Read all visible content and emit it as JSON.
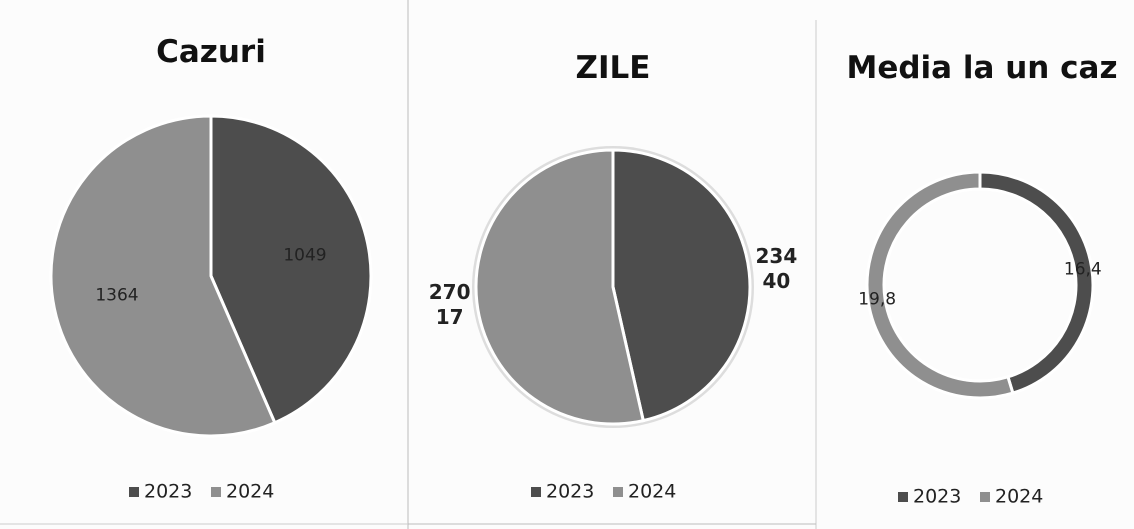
{
  "chart_data": [
    {
      "type": "pie",
      "title": "Cazuri",
      "categories": [
        "2023",
        "2024"
      ],
      "values": [
        1049,
        1364
      ],
      "colors": [
        "#4d4d4d",
        "#8f8f8f"
      ]
    },
    {
      "type": "pie",
      "title": "ZILE",
      "categories": [
        "2023",
        "2024"
      ],
      "values": [
        23440,
        27017
      ],
      "colors": [
        "#4d4d4d",
        "#8f8f8f"
      ]
    },
    {
      "type": "donut",
      "title": "Media la un caz",
      "categories": [
        "2023",
        "2024"
      ],
      "values": [
        16.4,
        19.8
      ],
      "value_labels": [
        "16,4",
        "19,8"
      ],
      "colors": [
        "#4d4d4d",
        "#8f8f8f"
      ]
    }
  ]
}
